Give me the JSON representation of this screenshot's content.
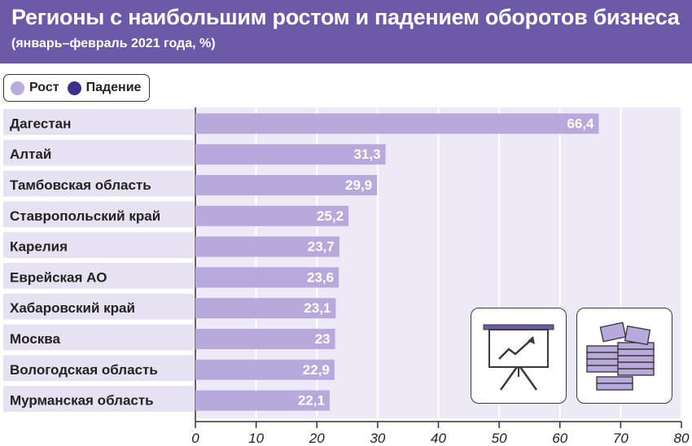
{
  "header": {
    "title": "Регионы с наибольшим ростом и падением оборотов бизнеса",
    "subtitle": "(январь–февраль 2021 года, %)"
  },
  "legend": [
    {
      "label": "Рост",
      "color": "#b9acdc"
    },
    {
      "label": "Падение",
      "color": "#3f2f8c"
    }
  ],
  "colors": {
    "header": "#6a5aa7",
    "bar": "#b8a9dc",
    "label_strip": "#e7e2f2",
    "plot_bg": "#ede9f6"
  },
  "icons": [
    "presentation-chart-icon",
    "money-stacks-icon"
  ],
  "chart_data": {
    "type": "bar",
    "orientation": "horizontal",
    "title": "Регионы с наибольшим ростом и падением оборотов бизнеса",
    "subtitle": "(январь–февраль 2021 года, %)",
    "categories": [
      "Дагестан",
      "Алтай",
      "Тамбовская область",
      "Ставропольский край",
      "Карелия",
      "Еврейская АО",
      "Хабаровский край",
      "Москва",
      "Вологодская область",
      "Мурманская область"
    ],
    "values": [
      66.4,
      31.3,
      29.9,
      25.2,
      23.7,
      23.6,
      23.1,
      23,
      22.9,
      22.1
    ],
    "value_labels": [
      "66,4",
      "31,3",
      "29,9",
      "25,2",
      "23,7",
      "23,6",
      "23,1",
      "23",
      "22,9",
      "22,1"
    ],
    "xlim": [
      0,
      80
    ],
    "xticks": [
      0,
      10,
      20,
      30,
      40,
      50,
      60,
      70,
      80
    ],
    "xtick_labels": [
      "0",
      "10",
      "20",
      "30",
      "40",
      "50",
      "60",
      "70",
      "80"
    ],
    "grid": true,
    "legend_position": "top-left"
  }
}
